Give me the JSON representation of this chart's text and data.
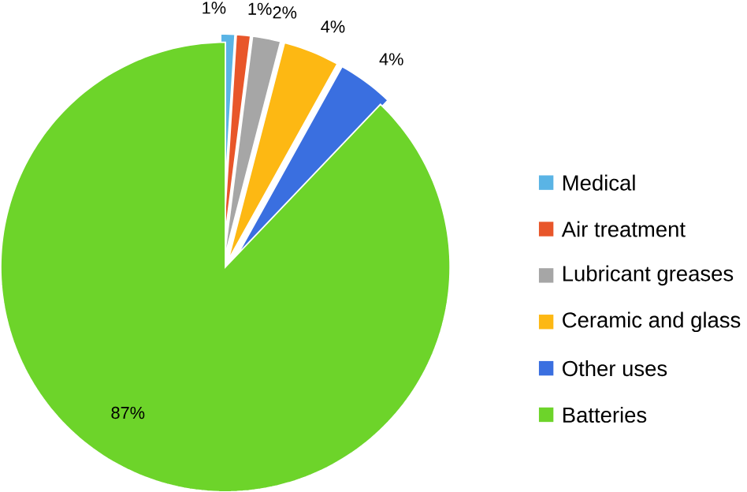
{
  "chart_data": {
    "type": "pie",
    "categories": [
      "Medical",
      "Air treatment",
      "Lubricant greases",
      "Ceramic and glass",
      "Other uses",
      "Batteries"
    ],
    "values": [
      1,
      1,
      2,
      4,
      4,
      87
    ],
    "colors": [
      "#5ab4e5",
      "#e8562a",
      "#a6a6a6",
      "#fdb813",
      "#3a6fe0",
      "#6dd42a"
    ],
    "value_labels": [
      "1%",
      "1%",
      "2%",
      "4%",
      "4%",
      "87%"
    ],
    "legend": "right"
  }
}
